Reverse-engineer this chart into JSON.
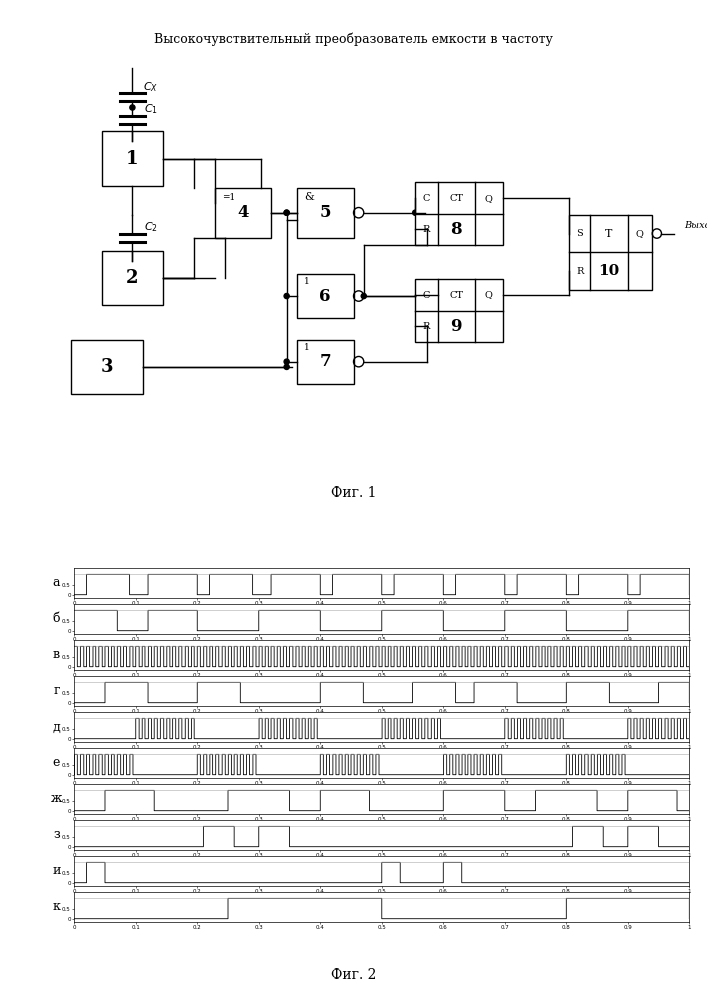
{
  "title": "Высокочувствительный преобразователь емкости в частоту",
  "fig1_label": "Фиг. 1",
  "fig2_label": "Фиг. 2",
  "waveform_labels": [
    "а",
    "б",
    "в",
    "г",
    "д",
    "е",
    "ж",
    "з",
    "и",
    "к"
  ],
  "background_color": "#ffffff",
  "line_color": "#000000"
}
